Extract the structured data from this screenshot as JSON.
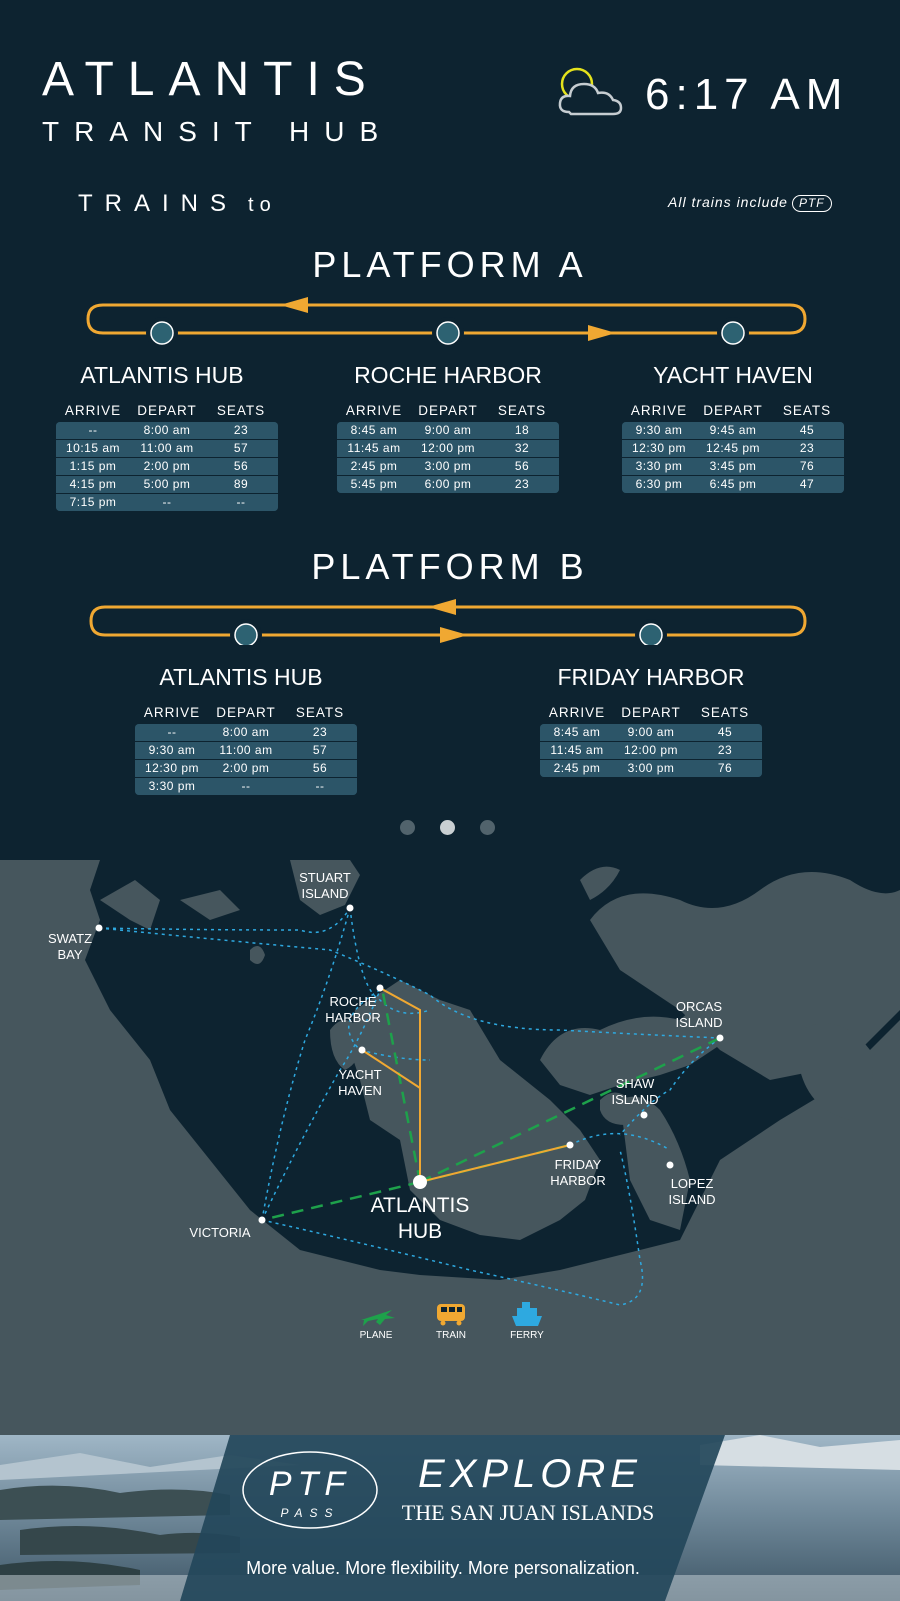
{
  "header": {
    "title": "ATLANTIS",
    "subtitle": "TRANSIT HUB",
    "time": "6:17 AM",
    "weather_icon": "partly-cloudy-icon"
  },
  "trains": {
    "heading": "TRAINS",
    "heading_suffix": "to",
    "note": "All trains include",
    "note_badge": "PTF"
  },
  "columns": [
    "ARRIVE",
    "DEPART",
    "SEATS"
  ],
  "platform_a": {
    "title": "PLATFORM A",
    "stations": [
      {
        "name": "ATLANTIS HUB",
        "rows": [
          [
            "--",
            "8:00 am",
            "23"
          ],
          [
            "10:15 am",
            "11:00 am",
            "57"
          ],
          [
            "1:15 pm",
            "2:00 pm",
            "56"
          ],
          [
            "4:15 pm",
            "5:00 pm",
            "89"
          ],
          [
            "7:15 pm",
            "--",
            "--"
          ]
        ]
      },
      {
        "name": "ROCHE HARBOR",
        "rows": [
          [
            "8:45 am",
            "9:00 am",
            "18"
          ],
          [
            "11:45 am",
            "12:00 pm",
            "32"
          ],
          [
            "2:45 pm",
            "3:00 pm",
            "56"
          ],
          [
            "5:45 pm",
            "6:00 pm",
            "23"
          ]
        ]
      },
      {
        "name": "YACHT HAVEN",
        "rows": [
          [
            "9:30 am",
            "9:45 am",
            "45"
          ],
          [
            "12:30 pm",
            "12:45 pm",
            "23"
          ],
          [
            "3:30 pm",
            "3:45 pm",
            "76"
          ],
          [
            "6:30 pm",
            "6:45 pm",
            "47"
          ]
        ]
      }
    ]
  },
  "platform_b": {
    "title": "PLATFORM B",
    "stations": [
      {
        "name": "ATLANTIS HUB",
        "rows": [
          [
            "--",
            "8:00 am",
            "23"
          ],
          [
            "9:30 am",
            "11:00 am",
            "57"
          ],
          [
            "12:30 pm",
            "2:00 pm",
            "56"
          ],
          [
            "3:30 pm",
            "--",
            "--"
          ]
        ]
      },
      {
        "name": "FRIDAY HARBOR",
        "rows": [
          [
            "8:45 am",
            "9:00 am",
            "45"
          ],
          [
            "11:45 am",
            "12:00 pm",
            "23"
          ],
          [
            "2:45 pm",
            "3:00 pm",
            "76"
          ]
        ]
      }
    ]
  },
  "pager": {
    "count": 3,
    "active": 2
  },
  "map": {
    "labels": {
      "stuart": [
        "STUART",
        "ISLAND"
      ],
      "swatz": [
        "SWATZ",
        "BAY"
      ],
      "roche": [
        "ROCHE",
        "HARBOR"
      ],
      "yacht": [
        "YACHT",
        "HAVEN"
      ],
      "orcas": [
        "ORCAS",
        "ISLAND"
      ],
      "shaw": [
        "SHAW",
        "ISLAND"
      ],
      "friday": [
        "FRIDAY",
        "HARBOR"
      ],
      "lopez": [
        "LOPEZ",
        "ISLAND"
      ],
      "victoria": "VICTORIA",
      "hub": [
        "ATLANTIS",
        "HUB"
      ]
    },
    "legend": {
      "plane": "PLANE",
      "train": "TRAIN",
      "ferry": "FERRY"
    }
  },
  "colors": {
    "background": "#0d2330",
    "route": "#f0a832",
    "plane": "#1ea14b",
    "ferry": "#2ea9e0",
    "row": "#2c5568"
  },
  "banner": {
    "badge": "PTF",
    "badge_sub": "PASS",
    "headline": "EXPLORE",
    "subhead": "THE SAN JUAN ISLANDS",
    "tagline": "More value. More flexibility. More personalization."
  }
}
